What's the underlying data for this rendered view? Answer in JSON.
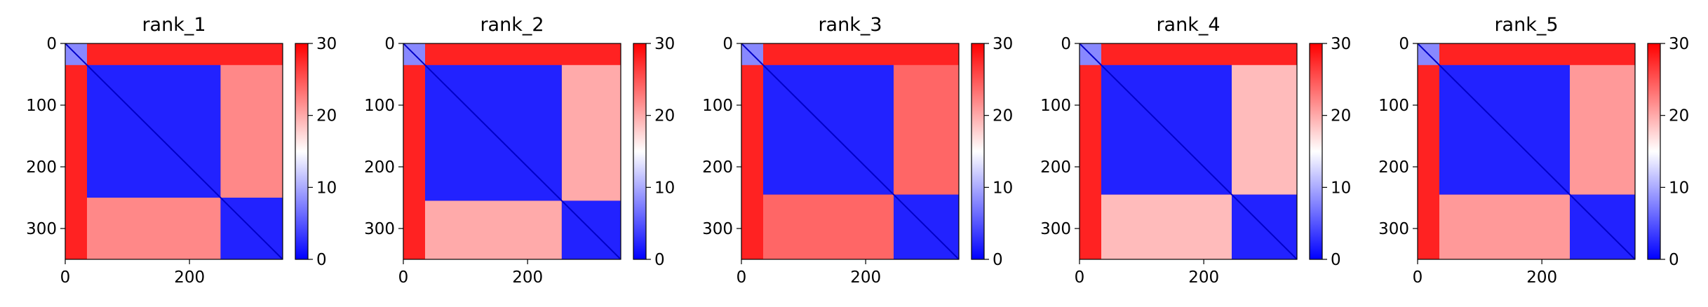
{
  "chart_data": [
    {
      "type": "heatmap",
      "title": "rank_1",
      "xlim": [
        0,
        350
      ],
      "ylim": [
        0,
        350
      ],
      "x_ticks": [
        "0",
        "200"
      ],
      "y_ticks": [
        "0",
        "100",
        "200",
        "300"
      ],
      "colorbar": {
        "min": 0,
        "max": 30,
        "ticks": [
          "0",
          "10",
          "20",
          "30"
        ],
        "colormap": "bwr"
      },
      "domains": {
        "boundaries": [
          0,
          35,
          250,
          350
        ],
        "diagonal_block_value": 2,
        "off_diagonal_value": 22,
        "n_terminal_value": 28
      }
    },
    {
      "type": "heatmap",
      "title": "rank_2",
      "xlim": [
        0,
        350
      ],
      "ylim": [
        0,
        350
      ],
      "x_ticks": [
        "0",
        "200"
      ],
      "y_ticks": [
        "0",
        "100",
        "200",
        "300"
      ],
      "colorbar": {
        "min": 0,
        "max": 30,
        "ticks": [
          "0",
          "10",
          "20",
          "30"
        ],
        "colormap": "bwr"
      },
      "domains": {
        "boundaries": [
          0,
          35,
          255,
          350
        ],
        "diagonal_block_value": 2,
        "off_diagonal_value": 20,
        "n_terminal_value": 28
      }
    },
    {
      "type": "heatmap",
      "title": "rank_3",
      "xlim": [
        0,
        350
      ],
      "ylim": [
        0,
        350
      ],
      "x_ticks": [
        "0",
        "200"
      ],
      "y_ticks": [
        "0",
        "100",
        "200",
        "300"
      ],
      "colorbar": {
        "min": 0,
        "max": 30,
        "ticks": [
          "0",
          "10",
          "20",
          "30"
        ],
        "colormap": "bwr"
      },
      "domains": {
        "boundaries": [
          0,
          35,
          245,
          350
        ],
        "diagonal_block_value": 2,
        "off_diagonal_value": 24,
        "n_terminal_value": 28
      }
    },
    {
      "type": "heatmap",
      "title": "rank_4",
      "xlim": [
        0,
        350
      ],
      "ylim": [
        0,
        350
      ],
      "x_ticks": [
        "0",
        "200"
      ],
      "y_ticks": [
        "0",
        "100",
        "200",
        "300"
      ],
      "colorbar": {
        "min": 0,
        "max": 30,
        "ticks": [
          "0",
          "10",
          "20",
          "30"
        ],
        "colormap": "bwr"
      },
      "domains": {
        "boundaries": [
          0,
          35,
          245,
          350
        ],
        "diagonal_block_value": 2,
        "off_diagonal_value": 19,
        "n_terminal_value": 28
      }
    },
    {
      "type": "heatmap",
      "title": "rank_5",
      "xlim": [
        0,
        350
      ],
      "ylim": [
        0,
        350
      ],
      "x_ticks": [
        "0",
        "200"
      ],
      "y_ticks": [
        "0",
        "100",
        "200",
        "300"
      ],
      "colorbar": {
        "min": 0,
        "max": 30,
        "ticks": [
          "0",
          "10",
          "20",
          "30"
        ],
        "colormap": "bwr"
      },
      "domains": {
        "boundaries": [
          0,
          35,
          245,
          350
        ],
        "diagonal_block_value": 2,
        "off_diagonal_value": 21,
        "n_terminal_value": 28
      }
    }
  ]
}
